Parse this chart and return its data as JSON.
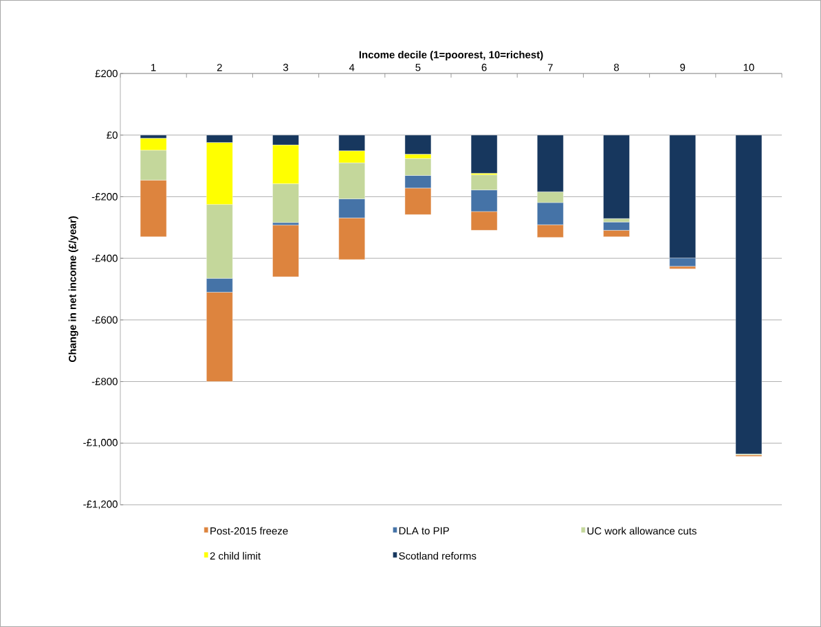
{
  "chart_data": {
    "type": "bar",
    "stacked": true,
    "xlabel": "Income decile (1=poorest, 10=richest)",
    "ylabel": "Change in net income (£/year)",
    "categories": [
      "1",
      "2",
      "3",
      "4",
      "5",
      "6",
      "7",
      "8",
      "9",
      "10"
    ],
    "series": [
      {
        "name": "Scotland reforms",
        "color": "#17375e",
        "values": [
          -10,
          -24,
          -32,
          -51,
          -62,
          -124,
          -184,
          -271,
          -399,
          -1035
        ]
      },
      {
        "name": "2 child limit",
        "color": "#ffff00",
        "values": [
          -39,
          -201,
          -126,
          -39,
          -14,
          -5,
          0,
          0,
          0,
          0
        ]
      },
      {
        "name": "UC work allowance cuts",
        "color": "#c4d79b",
        "values": [
          -97,
          -240,
          -126,
          -117,
          -55,
          -49,
          -35,
          -11,
          0,
          -3
        ]
      },
      {
        "name": "DLA to PIP",
        "color": "#4573a7",
        "values": [
          0,
          -45,
          -8,
          -62,
          -41,
          -70,
          -72,
          -27,
          -27,
          0
        ]
      },
      {
        "name": "Post-2015 freeze",
        "color": "#dd843e",
        "values": [
          -184,
          -290,
          -168,
          -135,
          -86,
          -61,
          -41,
          -21,
          -8,
          -5
        ]
      }
    ],
    "ylim": [
      -1200,
      200
    ],
    "yticks": [
      {
        "value": -1200,
        "label": "-£1,200"
      },
      {
        "value": -1000,
        "label": "-£1,000"
      },
      {
        "value": -800,
        "label": "-£800"
      },
      {
        "value": -600,
        "label": "-£600"
      },
      {
        "value": -400,
        "label": "-£400"
      },
      {
        "value": -200,
        "label": "-£200"
      },
      {
        "value": 0,
        "label": "£0"
      },
      {
        "value": 200,
        "label": "£200"
      }
    ],
    "grid": "y",
    "legend": "bottom"
  }
}
